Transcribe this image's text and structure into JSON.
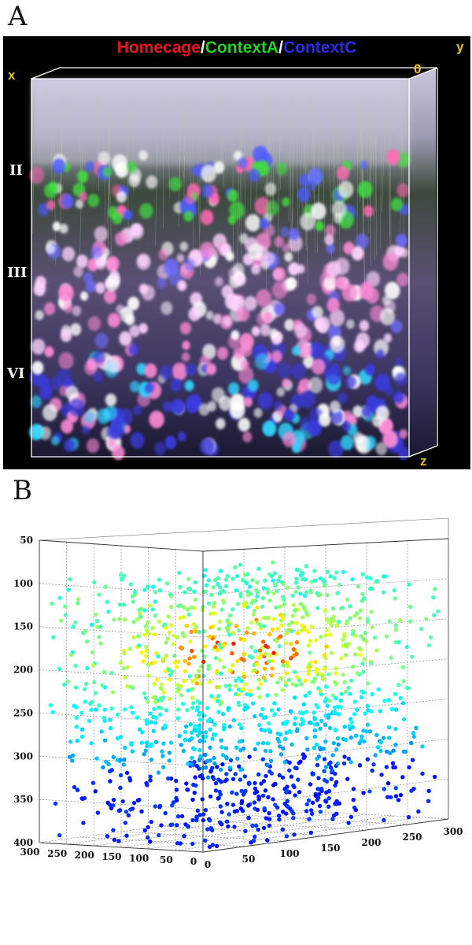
{
  "figure": {
    "panel_a_letter": "A",
    "panel_b_letter": "B"
  },
  "panel_a": {
    "legend": {
      "homecage": "Homecage",
      "sep1": "/",
      "context_a": "ContextA",
      "sep2": "/",
      "context_c": "ContextC"
    },
    "colors": {
      "homecage": "#e8141b",
      "context_a": "#1fd61f",
      "context_c": "#2222e0",
      "separator": "#ffffff",
      "axis_letters": "#e6c223",
      "box_lines": "#ffffff"
    },
    "layer_labels": {
      "layer_2": "II",
      "layer_3": "III",
      "layer_6": "VI"
    },
    "axis_letters": {
      "x": "x",
      "y": "y",
      "z": "z",
      "origin": "0"
    }
  },
  "chart_data": {
    "type": "scatter",
    "title": "",
    "xlabel": "",
    "ylabel": "",
    "zlabel": "",
    "x_range": [
      0,
      300
    ],
    "y_range": [
      0,
      300
    ],
    "z_range": [
      50,
      400
    ],
    "z_axis_inverted": true,
    "grid": true,
    "colormap": "jet",
    "z_ticks": [
      50,
      100,
      150,
      200,
      250,
      300,
      350,
      400
    ],
    "x_ticks": [
      0,
      50,
      100,
      150,
      200,
      250,
      300
    ],
    "y_ticks": [
      0,
      50,
      100,
      150,
      200,
      250,
      300
    ],
    "point_count": 1400,
    "color_encoding": "cell activity, high (red) concentrated at depth 150–220, low (blue) near depth 300–400"
  }
}
